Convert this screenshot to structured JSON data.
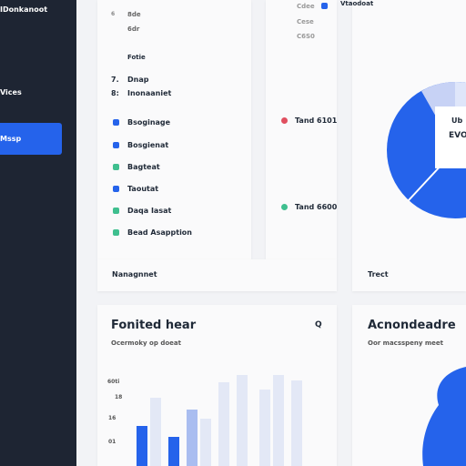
{
  "sidebar": {
    "brand": "IDonkanoot",
    "items": [
      "Vices",
      "Mssp"
    ]
  },
  "panel1": {
    "top_rows": [
      "6",
      "8de",
      "6dr",
      "Fotie"
    ],
    "numbered": [
      {
        "num": "7.",
        "label": "Dnap"
      },
      {
        "num": "8:",
        "label": "Inonaaniet"
      }
    ],
    "list": [
      "Bsoginage",
      "Bosgienat",
      "Bagteat",
      "Taoutat",
      "Daqa Iasat",
      "Bead Asapption"
    ]
  },
  "panel2": {
    "rows": [
      "Cdee",
      "Cese",
      "C6S0"
    ],
    "alerts": [
      "Tand 6101",
      "Tand 6600"
    ]
  },
  "footer": {
    "left": "Nanagnnet",
    "right": "Trect"
  },
  "pie_card": {
    "title": "Vtaodoat",
    "labels": [
      "Ub",
      "EVO"
    ]
  },
  "chart_card": {
    "title": "Fonited hear",
    "search": "Q",
    "subtitle": "Ocermoky op doeat",
    "tick_labels": [
      "60ti",
      "18",
      "16",
      "01"
    ],
    "ylim": [
      0,
      100
    ],
    "bars": [
      {
        "value": 44,
        "color": "#2563eb"
      },
      {
        "value": 75,
        "color": "#e3e8f6"
      },
      {
        "value": 32,
        "color": "#2563eb"
      },
      {
        "value": 62,
        "color": "#a9bdf0"
      },
      {
        "value": 52,
        "color": "#e3e8f6"
      },
      {
        "value": 92,
        "color": "#e3e8f6"
      },
      {
        "value": 100,
        "color": "#e3e8f6"
      },
      {
        "value": 84,
        "color": "#e3e8f6"
      },
      {
        "value": 100,
        "color": "#e3e8f6"
      },
      {
        "value": 94,
        "color": "#e3e8f6"
      }
    ]
  },
  "right_card": {
    "title": "Acnondeadre",
    "subtitle": "Oor macsspeny meet"
  }
}
